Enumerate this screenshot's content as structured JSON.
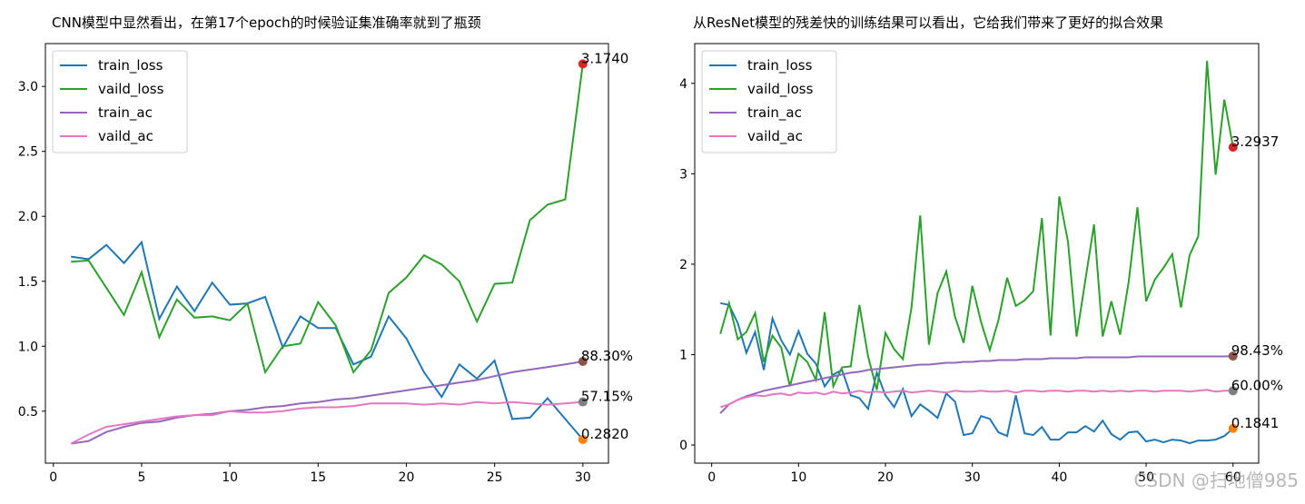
{
  "chart_data": [
    {
      "type": "line",
      "title": "CNN模型中显然看出，在第17个epoch的时候验证集准确率就到了瓶颈",
      "x": [
        1,
        2,
        3,
        4,
        5,
        6,
        7,
        8,
        9,
        10,
        11,
        12,
        13,
        14,
        15,
        16,
        17,
        18,
        19,
        20,
        21,
        22,
        23,
        24,
        25,
        26,
        27,
        28,
        29,
        30
      ],
      "series": [
        {
          "name": "train_loss",
          "color": "#1f77b4",
          "values": [
            1.69,
            1.67,
            1.78,
            1.64,
            1.8,
            1.21,
            1.46,
            1.27,
            1.49,
            1.32,
            1.33,
            1.38,
            0.99,
            1.23,
            1.14,
            1.14,
            0.86,
            0.92,
            1.23,
            1.06,
            0.8,
            0.61,
            0.86,
            0.75,
            0.89,
            0.44,
            0.45,
            0.6,
            0.44,
            0.282
          ]
        },
        {
          "name": "vaild_loss",
          "color": "#2ca02c",
          "values": [
            1.65,
            1.66,
            1.45,
            1.24,
            1.57,
            1.07,
            1.36,
            1.22,
            1.23,
            1.2,
            1.33,
            0.8,
            1.0,
            1.02,
            1.34,
            1.16,
            0.8,
            0.97,
            1.41,
            1.53,
            1.7,
            1.63,
            1.5,
            1.19,
            1.48,
            1.49,
            1.97,
            2.09,
            2.13,
            3.174
          ]
        },
        {
          "name": "train_ac",
          "color": "#9467bd",
          "values": [
            0.25,
            0.27,
            0.34,
            0.38,
            0.41,
            0.42,
            0.45,
            0.47,
            0.48,
            0.5,
            0.51,
            0.53,
            0.54,
            0.56,
            0.57,
            0.59,
            0.6,
            0.62,
            0.64,
            0.66,
            0.68,
            0.7,
            0.72,
            0.74,
            0.77,
            0.8,
            0.82,
            0.84,
            0.86,
            0.883
          ]
        },
        {
          "name": "vaild_ac",
          "color": "#e377c2",
          "values": [
            0.25,
            0.32,
            0.38,
            0.4,
            0.42,
            0.44,
            0.46,
            0.47,
            0.47,
            0.5,
            0.49,
            0.49,
            0.5,
            0.52,
            0.53,
            0.53,
            0.54,
            0.56,
            0.56,
            0.56,
            0.55,
            0.56,
            0.55,
            0.57,
            0.56,
            0.57,
            0.56,
            0.55,
            0.56,
            0.5715
          ]
        }
      ],
      "annotations": [
        {
          "x": 30,
          "y": 3.174,
          "label": "3.1740",
          "color": "#d62728"
        },
        {
          "x": 30,
          "y": 0.883,
          "label": "88.30%",
          "color": "#8c564b"
        },
        {
          "x": 30,
          "y": 0.5715,
          "label": "57.15%",
          "color": "#7f7f7f"
        },
        {
          "x": 30,
          "y": 0.282,
          "label": "0.2820",
          "color": "#ff7f0e"
        }
      ],
      "xlim": [
        -0.45,
        31.45
      ],
      "ylim": [
        0.1,
        3.33
      ],
      "xticks": [
        0,
        5,
        10,
        15,
        20,
        25,
        30
      ],
      "yticks": [
        0.5,
        {
          "value": 1,
          "label": "1.0"
        },
        1.5,
        {
          "value": 2,
          "label": "2.0"
        },
        2.5,
        {
          "value": 3,
          "label": "3.0"
        }
      ],
      "grid": false,
      "legend": "upper left"
    },
    {
      "type": "line",
      "title": "从ResNet模型的残差快的训练结果可以看出，它给我们带来了更好的拟合效果",
      "x": [
        1,
        2,
        3,
        4,
        5,
        6,
        7,
        8,
        9,
        10,
        11,
        12,
        13,
        14,
        15,
        16,
        17,
        18,
        19,
        20,
        21,
        22,
        23,
        24,
        25,
        26,
        27,
        28,
        29,
        30,
        31,
        32,
        33,
        34,
        35,
        36,
        37,
        38,
        39,
        40,
        41,
        42,
        43,
        44,
        45,
        46,
        47,
        48,
        49,
        50,
        51,
        52,
        53,
        54,
        55,
        56,
        57,
        58,
        59,
        60
      ],
      "series": [
        {
          "name": "train_loss",
          "color": "#1f77b4",
          "values": [
            1.57,
            1.55,
            1.35,
            1.02,
            1.25,
            0.83,
            1.4,
            1.16,
            1.0,
            1.26,
            1.01,
            0.9,
            0.65,
            0.78,
            0.83,
            0.55,
            0.52,
            0.4,
            0.8,
            0.55,
            0.42,
            0.62,
            0.32,
            0.45,
            0.38,
            0.3,
            0.57,
            0.48,
            0.11,
            0.13,
            0.32,
            0.29,
            0.14,
            0.1,
            0.55,
            0.13,
            0.11,
            0.2,
            0.06,
            0.06,
            0.14,
            0.14,
            0.21,
            0.15,
            0.27,
            0.12,
            0.06,
            0.14,
            0.15,
            0.04,
            0.06,
            0.03,
            0.06,
            0.05,
            0.02,
            0.05,
            0.05,
            0.06,
            0.1,
            0.1841
          ]
        },
        {
          "name": "vaild_loss",
          "color": "#2ca02c",
          "values": [
            1.23,
            1.57,
            1.17,
            1.25,
            1.46,
            0.92,
            1.21,
            1.08,
            0.65,
            1.01,
            0.92,
            0.72,
            1.47,
            0.65,
            0.86,
            0.87,
            1.55,
            0.98,
            0.61,
            1.24,
            1.06,
            0.95,
            1.52,
            2.54,
            1.11,
            1.68,
            1.92,
            1.42,
            1.13,
            1.76,
            1.36,
            1.05,
            1.38,
            1.85,
            1.54,
            1.6,
            1.7,
            2.51,
            1.21,
            2.75,
            2.25,
            1.2,
            1.82,
            2.44,
            1.2,
            1.59,
            1.22,
            1.81,
            2.63,
            1.59,
            1.83,
            1.96,
            2.11,
            1.52,
            2.1,
            2.31,
            4.25,
            2.99,
            3.82,
            3.2937
          ]
        },
        {
          "name": "train_ac",
          "color": "#9467bd",
          "values": [
            0.35,
            0.45,
            0.5,
            0.54,
            0.57,
            0.6,
            0.62,
            0.64,
            0.66,
            0.68,
            0.7,
            0.72,
            0.74,
            0.76,
            0.78,
            0.8,
            0.81,
            0.83,
            0.84,
            0.85,
            0.86,
            0.87,
            0.88,
            0.89,
            0.89,
            0.9,
            0.91,
            0.91,
            0.92,
            0.92,
            0.93,
            0.93,
            0.94,
            0.94,
            0.94,
            0.95,
            0.95,
            0.95,
            0.96,
            0.96,
            0.96,
            0.96,
            0.97,
            0.97,
            0.97,
            0.97,
            0.97,
            0.97,
            0.98,
            0.98,
            0.98,
            0.98,
            0.98,
            0.98,
            0.98,
            0.98,
            0.98,
            0.98,
            0.98,
            0.9843
          ]
        },
        {
          "name": "vaild_ac",
          "color": "#e377c2",
          "values": [
            0.42,
            0.45,
            0.5,
            0.53,
            0.55,
            0.54,
            0.56,
            0.57,
            0.55,
            0.58,
            0.57,
            0.58,
            0.56,
            0.59,
            0.57,
            0.58,
            0.6,
            0.58,
            0.59,
            0.58,
            0.59,
            0.6,
            0.58,
            0.59,
            0.6,
            0.59,
            0.58,
            0.6,
            0.59,
            0.59,
            0.6,
            0.59,
            0.59,
            0.6,
            0.58,
            0.6,
            0.6,
            0.59,
            0.6,
            0.6,
            0.59,
            0.6,
            0.6,
            0.59,
            0.6,
            0.59,
            0.6,
            0.59,
            0.6,
            0.6,
            0.59,
            0.6,
            0.6,
            0.6,
            0.59,
            0.6,
            0.61,
            0.59,
            0.6,
            0.6
          ]
        }
      ],
      "annotations": [
        {
          "x": 60,
          "y": 3.2937,
          "label": "3.2937",
          "color": "#d62728"
        },
        {
          "x": 60,
          "y": 0.9843,
          "label": "98.43%",
          "color": "#8c564b"
        },
        {
          "x": 60,
          "y": 0.6,
          "label": "60.00%",
          "color": "#7f7f7f"
        },
        {
          "x": 60,
          "y": 0.1841,
          "label": "0.1841",
          "color": "#ff7f0e"
        }
      ],
      "xlim": [
        -1.95,
        62.95
      ],
      "ylim": [
        -0.2,
        4.44
      ],
      "xticks": [
        0,
        10,
        20,
        30,
        40,
        50,
        60
      ],
      "yticks": [
        0,
        1,
        2,
        3,
        4
      ],
      "grid": false,
      "legend": "upper left",
      "watermark": "CSDN @扫地僧985"
    }
  ]
}
